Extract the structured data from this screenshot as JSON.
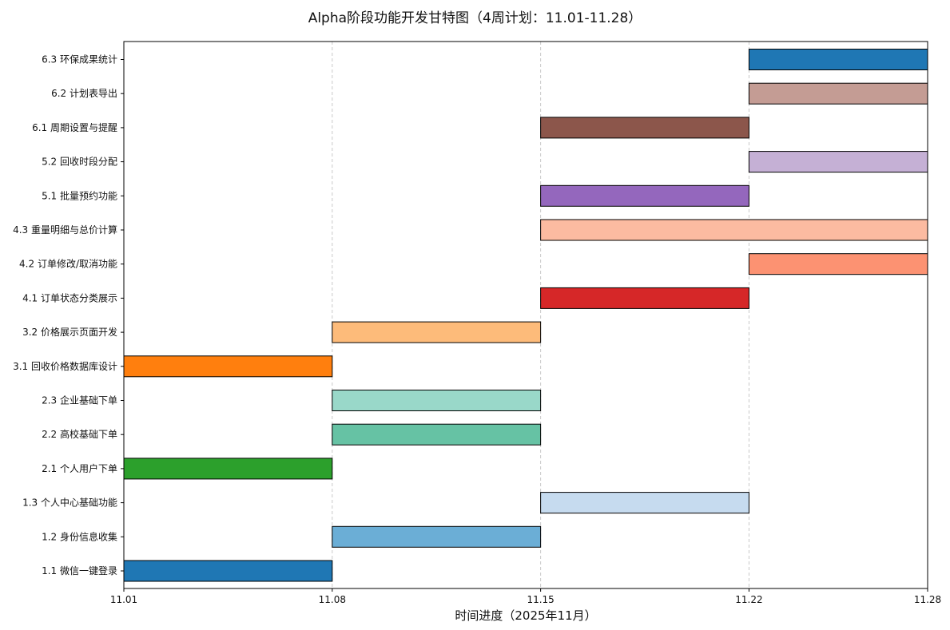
{
  "chart_data": {
    "type": "gantt",
    "title": "Alpha阶段功能开发甘特图（4周计划：11.01-11.28）",
    "xlabel": "时间进度（2025年11月）",
    "ylabel": "",
    "x_ticks": [
      "11.01",
      "11.08",
      "11.15",
      "11.22",
      "11.28"
    ],
    "x_tick_days": [
      1,
      8,
      15,
      22,
      28
    ],
    "xlim_days": [
      1,
      28
    ],
    "grid": "x-dashed",
    "tasks": [
      {
        "label": "1.1 微信一键登录",
        "start": 1,
        "end": 8,
        "color": "#1f77b4"
      },
      {
        "label": "1.2 身份信息收集",
        "start": 8,
        "end": 15,
        "color": "#6baed6"
      },
      {
        "label": "1.3 个人中心基础功能",
        "start": 15,
        "end": 22,
        "color": "#c6dbef"
      },
      {
        "label": "2.1 个人用户下单",
        "start": 1,
        "end": 8,
        "color": "#2ca02c"
      },
      {
        "label": "2.2 高校基础下单",
        "start": 8,
        "end": 15,
        "color": "#66c2a4"
      },
      {
        "label": "2.3 企业基础下单",
        "start": 8,
        "end": 15,
        "color": "#99d8c9"
      },
      {
        "label": "3.1 回收价格数据库设计",
        "start": 1,
        "end": 8,
        "color": "#ff7f0e"
      },
      {
        "label": "3.2 价格展示页面开发",
        "start": 8,
        "end": 15,
        "color": "#fdbb7a"
      },
      {
        "label": "4.1 订单状态分类展示",
        "start": 15,
        "end": 22,
        "color": "#d62728"
      },
      {
        "label": "4.2 订单修改/取消功能",
        "start": 22,
        "end": 28,
        "color": "#fc9272"
      },
      {
        "label": "4.3 重量明细与总价计算",
        "start": 15,
        "end": 28,
        "color": "#fcbba1"
      },
      {
        "label": "5.1 批量预约功能",
        "start": 15,
        "end": 22,
        "color": "#9467bd"
      },
      {
        "label": "5.2 回收时段分配",
        "start": 22,
        "end": 28,
        "color": "#c5b0d5"
      },
      {
        "label": "6.1 周期设置与提醒",
        "start": 15,
        "end": 22,
        "color": "#8c564b"
      },
      {
        "label": "6.2 计划表导出",
        "start": 22,
        "end": 28,
        "color": "#c49c94"
      },
      {
        "label": "6.3 环保成果统计",
        "start": 22,
        "end": 28,
        "color": "#1f77b4"
      }
    ]
  }
}
